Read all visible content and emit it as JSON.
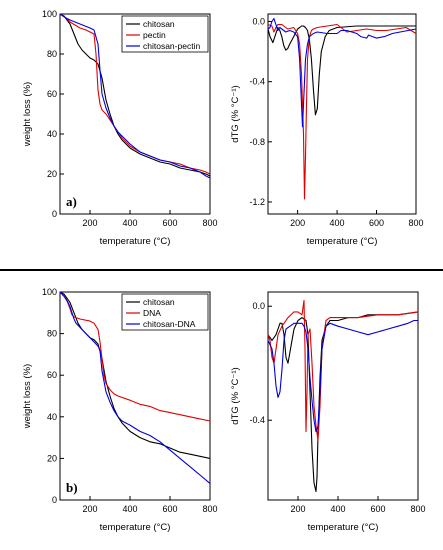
{
  "chart_data": [
    {
      "type": "line",
      "panel_label": "a)",
      "xlabel": "temperature (°C)",
      "ylabel": "weight loss (%)",
      "xlim": [
        50,
        800
      ],
      "ylim": [
        0,
        100
      ],
      "xticks": [
        "200",
        "400",
        "600",
        "800"
      ],
      "yticks": [
        "0",
        "20",
        "40",
        "60",
        "80",
        "100"
      ],
      "legend": "top-right",
      "series": [
        {
          "name": "chitosan",
          "color": "#000000",
          "x": [
            50,
            70,
            100,
            120,
            140,
            160,
            180,
            200,
            220,
            240,
            260,
            280,
            300,
            320,
            340,
            360,
            400,
            450,
            500,
            550,
            600,
            650,
            700,
            750,
            780,
            800
          ],
          "y": [
            100,
            99,
            95,
            90,
            85,
            82,
            80,
            78,
            77,
            75,
            68,
            57,
            50,
            44,
            40,
            37,
            33,
            30,
            28,
            26,
            25,
            23,
            22,
            21,
            20,
            19
          ]
        },
        {
          "name": "pectin",
          "color": "#e00000",
          "x": [
            50,
            80,
            100,
            150,
            180,
            200,
            220,
            230,
            240,
            250,
            260,
            280,
            300,
            320,
            340,
            360,
            400,
            450,
            500,
            550,
            600,
            650,
            700,
            750,
            780,
            800
          ],
          "y": [
            100,
            98,
            96,
            93,
            92,
            91,
            90,
            80,
            62,
            55,
            52,
            50,
            47,
            44,
            41,
            38,
            34,
            31,
            29,
            27,
            26,
            25,
            23,
            22,
            21,
            20
          ]
        },
        {
          "name": "chitosan-pectin",
          "color": "#0000e0",
          "x": [
            50,
            80,
            100,
            150,
            200,
            220,
            240,
            250,
            260,
            280,
            300,
            320,
            340,
            360,
            400,
            450,
            500,
            550,
            600,
            650,
            700,
            750,
            780,
            800
          ],
          "y": [
            100,
            98,
            97,
            95,
            93,
            92,
            85,
            72,
            60,
            53,
            48,
            44,
            41,
            39,
            35,
            31,
            29,
            27,
            26,
            24,
            23,
            21,
            19,
            18
          ]
        }
      ]
    },
    {
      "type": "line",
      "panel_label": "",
      "xlabel": "temperature (°C)",
      "ylabel": "dTG (% °C⁻¹)",
      "xlim": [
        50,
        800
      ],
      "ylim": [
        -1.28,
        0.05
      ],
      "xticks": [
        "200",
        "400",
        "600",
        "800"
      ],
      "yticks": [
        "0.0",
        "-0.4",
        "-0.8",
        "-1.2"
      ],
      "series": [
        {
          "name": "chitosan",
          "color": "#000000",
          "x": [
            50,
            60,
            75,
            90,
            100,
            110,
            120,
            130,
            140,
            150,
            160,
            180,
            200,
            210,
            220,
            230,
            240,
            250,
            260,
            270,
            280,
            290,
            300,
            310,
            320,
            340,
            360,
            400,
            500,
            600,
            700,
            800
          ],
          "y": [
            -0.05,
            -0.1,
            -0.14,
            -0.08,
            -0.04,
            -0.06,
            -0.1,
            -0.16,
            -0.19,
            -0.18,
            -0.15,
            -0.1,
            -0.05,
            -0.04,
            -0.03,
            -0.03,
            -0.04,
            -0.06,
            -0.12,
            -0.25,
            -0.45,
            -0.62,
            -0.58,
            -0.35,
            -0.2,
            -0.1,
            -0.06,
            -0.04,
            -0.03,
            -0.03,
            -0.03,
            -0.03
          ]
        },
        {
          "name": "pectin",
          "color": "#e00000",
          "x": [
            50,
            70,
            80,
            90,
            100,
            120,
            150,
            180,
            200,
            210,
            220,
            230,
            235,
            240,
            245,
            250,
            260,
            270,
            280,
            300,
            350,
            400,
            450,
            500,
            550,
            600,
            650,
            700,
            750,
            800
          ],
          "y": [
            -0.02,
            -0.03,
            -0.07,
            -0.04,
            -0.02,
            -0.02,
            -0.05,
            -0.04,
            -0.08,
            -0.15,
            -0.35,
            -0.75,
            -1.18,
            -0.9,
            -0.55,
            -0.25,
            -0.1,
            -0.06,
            -0.05,
            -0.04,
            -0.03,
            -0.02,
            -0.07,
            -0.06,
            -0.05,
            -0.06,
            -0.06,
            -0.05,
            -0.04,
            -0.08
          ]
        },
        {
          "name": "chitosan-pectin",
          "color": "#0000e0",
          "x": [
            50,
            60,
            70,
            80,
            90,
            100,
            110,
            120,
            140,
            160,
            180,
            200,
            210,
            220,
            225,
            230,
            240,
            250,
            260,
            280,
            300,
            350,
            380,
            400,
            420,
            450,
            500,
            520,
            550,
            560,
            580,
            600,
            640,
            680,
            720,
            760,
            800
          ],
          "y": [
            -0.05,
            -0.04,
            0.0,
            0.02,
            -0.02,
            -0.06,
            -0.04,
            -0.05,
            -0.07,
            -0.06,
            -0.07,
            -0.1,
            -0.25,
            -0.55,
            -0.7,
            -0.55,
            -0.25,
            -0.15,
            -0.1,
            -0.08,
            -0.07,
            -0.08,
            -0.08,
            -0.08,
            -0.06,
            -0.06,
            -0.08,
            -0.1,
            -0.11,
            -0.09,
            -0.1,
            -0.11,
            -0.1,
            -0.08,
            -0.07,
            -0.06,
            -0.05
          ]
        }
      ]
    },
    {
      "type": "line",
      "panel_label": "b)",
      "xlabel": "temperature (°C)",
      "ylabel": "weight loss (%)",
      "xlim": [
        50,
        800
      ],
      "ylim": [
        0,
        100
      ],
      "xticks": [
        "200",
        "400",
        "600",
        "800"
      ],
      "yticks": [
        "0",
        "20",
        "40",
        "60",
        "80",
        "100"
      ],
      "legend": "top-right",
      "series": [
        {
          "name": "chitosan",
          "color": "#000000",
          "x": [
            50,
            70,
            100,
            120,
            140,
            160,
            180,
            200,
            220,
            240,
            260,
            280,
            300,
            320,
            340,
            360,
            400,
            450,
            500,
            550,
            600,
            650,
            700,
            750,
            800
          ],
          "y": [
            100,
            99,
            95,
            90,
            85,
            82,
            80,
            78,
            77,
            75,
            68,
            57,
            50,
            44,
            40,
            37,
            33,
            30,
            28,
            27,
            25,
            23,
            22,
            21,
            20
          ]
        },
        {
          "name": "DNA",
          "color": "#e00000",
          "x": [
            50,
            60,
            80,
            100,
            110,
            120,
            150,
            200,
            220,
            240,
            250,
            260,
            270,
            280,
            300,
            320,
            340,
            400,
            450,
            500,
            550,
            600,
            650,
            700,
            750,
            800
          ],
          "y": [
            100,
            99,
            97,
            92,
            89,
            88,
            87,
            86,
            85,
            82,
            76,
            68,
            60,
            56,
            53,
            51,
            50,
            48,
            46,
            45,
            43,
            42,
            41,
            40,
            39,
            38
          ]
        },
        {
          "name": "chitosan-DNA",
          "color": "#0000e0",
          "x": [
            50,
            70,
            90,
            100,
            110,
            120,
            130,
            140,
            150,
            180,
            200,
            220,
            240,
            250,
            260,
            280,
            300,
            320,
            340,
            360,
            400,
            450,
            500,
            550,
            600,
            650,
            700,
            750,
            800
          ],
          "y": [
            100,
            98,
            95,
            93,
            90,
            87,
            85,
            84,
            83,
            80,
            78,
            76,
            74,
            72,
            62,
            52,
            47,
            43,
            40,
            38,
            36,
            33,
            31,
            28,
            24,
            20,
            16,
            12,
            8
          ]
        }
      ]
    },
    {
      "type": "line",
      "panel_label": "",
      "xlabel": "temperature (°C)",
      "ylabel": "dTG (% °C⁻¹)",
      "xlim": [
        50,
        800
      ],
      "ylim": [
        -0.68,
        0.05
      ],
      "xticks": [
        "200",
        "400",
        "600",
        "800"
      ],
      "yticks": [
        "0.0",
        "-0.4"
      ],
      "series": [
        {
          "name": "chitosan",
          "color": "#000000",
          "x": [
            50,
            70,
            90,
            100,
            110,
            120,
            130,
            140,
            150,
            160,
            180,
            200,
            220,
            240,
            250,
            260,
            270,
            280,
            290,
            295,
            300,
            310,
            320,
            340,
            360,
            400,
            450,
            500,
            550,
            600,
            700,
            800
          ],
          "y": [
            -0.1,
            -0.12,
            -0.1,
            -0.08,
            -0.06,
            -0.06,
            -0.1,
            -0.18,
            -0.2,
            -0.16,
            -0.08,
            -0.05,
            -0.04,
            -0.05,
            -0.1,
            -0.3,
            -0.5,
            -0.62,
            -0.65,
            -0.6,
            -0.45,
            -0.25,
            -0.12,
            -0.07,
            -0.05,
            -0.05,
            -0.04,
            -0.04,
            -0.03,
            -0.03,
            -0.03,
            -0.02
          ]
        },
        {
          "name": "DNA",
          "color": "#e00000",
          "x": [
            50,
            60,
            70,
            80,
            90,
            100,
            120,
            150,
            180,
            200,
            220,
            230,
            235,
            240,
            245,
            250,
            260,
            270,
            280,
            290,
            300,
            310,
            320,
            340,
            360,
            400,
            500,
            600,
            700,
            800
          ],
          "y": [
            -0.1,
            -0.12,
            -0.18,
            -0.2,
            -0.15,
            -0.1,
            -0.07,
            -0.04,
            -0.02,
            -0.02,
            -0.03,
            0.02,
            -0.15,
            -0.44,
            -0.3,
            -0.1,
            -0.08,
            -0.2,
            -0.35,
            -0.42,
            -0.47,
            -0.35,
            -0.15,
            -0.05,
            -0.04,
            -0.04,
            -0.04,
            -0.03,
            -0.03,
            -0.02
          ]
        },
        {
          "name": "chitosan-DNA",
          "color": "#0000e0",
          "x": [
            50,
            70,
            80,
            90,
            100,
            110,
            120,
            130,
            140,
            160,
            180,
            200,
            220,
            230,
            240,
            250,
            260,
            270,
            280,
            290,
            300,
            310,
            320,
            340,
            360,
            400,
            450,
            500,
            550,
            600,
            650,
            700,
            750,
            780,
            800
          ],
          "y": [
            -0.12,
            -0.15,
            -0.2,
            -0.28,
            -0.32,
            -0.3,
            -0.22,
            -0.12,
            -0.08,
            -0.07,
            -0.06,
            -0.06,
            -0.06,
            -0.07,
            -0.09,
            -0.15,
            -0.25,
            -0.33,
            -0.4,
            -0.44,
            -0.42,
            -0.3,
            -0.15,
            -0.07,
            -0.06,
            -0.07,
            -0.08,
            -0.09,
            -0.1,
            -0.09,
            -0.08,
            -0.07,
            -0.06,
            -0.05,
            -0.05
          ]
        }
      ]
    }
  ]
}
